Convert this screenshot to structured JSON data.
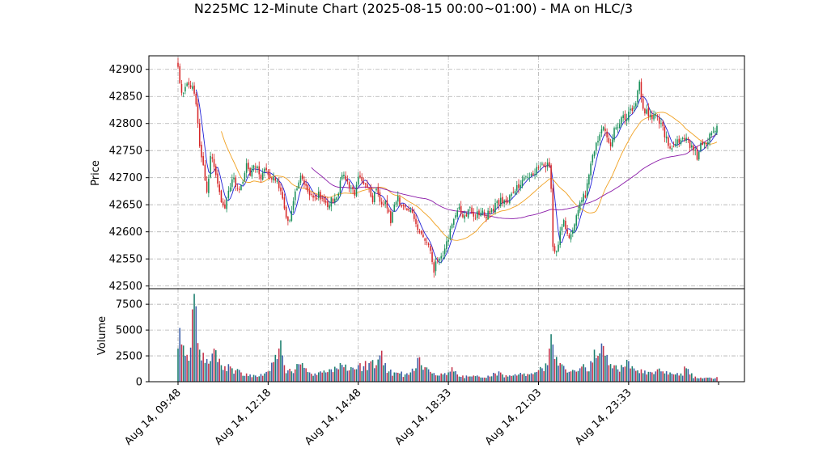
{
  "chart_data": {
    "type": "candlestick",
    "title": "N225MC 12-Minute Chart (2025-08-15 00:00~01:00) - MA on HLC/3",
    "ylabel_price": "Price",
    "ylabel_volume": "Volume",
    "price_ylim": [
      42495,
      42925
    ],
    "volume_ylim": [
      0,
      9000
    ],
    "price_ticks": [
      "42500",
      "42550",
      "42600",
      "42650",
      "42700",
      "42750",
      "42800",
      "42850",
      "42900"
    ],
    "volume_ticks": [
      "0",
      "2500",
      "5000",
      "7500"
    ],
    "x_ticks": [
      {
        "index": 0,
        "label": "Aug 14, 09:48"
      },
      {
        "index": 50,
        "label": "Aug 14, 12:18"
      },
      {
        "index": 100,
        "label": "Aug 14, 14:48"
      },
      {
        "index": 150,
        "label": "Aug 14, 18:33"
      },
      {
        "index": 200,
        "label": "Aug 14, 21:03"
      },
      {
        "index": 250,
        "label": "Aug 14, 23:33"
      }
    ],
    "bar_count": 300,
    "close_anchors": [
      [
        0,
        42905
      ],
      [
        2,
        42850
      ],
      [
        5,
        42880
      ],
      [
        8,
        42870
      ],
      [
        10,
        42840
      ],
      [
        12,
        42760
      ],
      [
        14,
        42720
      ],
      [
        16,
        42670
      ],
      [
        18,
        42740
      ],
      [
        20,
        42720
      ],
      [
        22,
        42690
      ],
      [
        24,
        42660
      ],
      [
        26,
        42650
      ],
      [
        28,
        42670
      ],
      [
        30,
        42700
      ],
      [
        32,
        42690
      ],
      [
        35,
        42680
      ],
      [
        38,
        42720
      ],
      [
        40,
        42705
      ],
      [
        43,
        42725
      ],
      [
        46,
        42700
      ],
      [
        48,
        42720
      ],
      [
        50,
        42710
      ],
      [
        52,
        42700
      ],
      [
        55,
        42690
      ],
      [
        58,
        42660
      ],
      [
        60,
        42630
      ],
      [
        62,
        42620
      ],
      [
        64,
        42660
      ],
      [
        66,
        42680
      ],
      [
        68,
        42700
      ],
      [
        70,
        42690
      ],
      [
        72,
        42670
      ],
      [
        75,
        42660
      ],
      [
        78,
        42670
      ],
      [
        80,
        42660
      ],
      [
        83,
        42650
      ],
      [
        86,
        42660
      ],
      [
        88,
        42665
      ],
      [
        90,
        42690
      ],
      [
        92,
        42710
      ],
      [
        95,
        42680
      ],
      [
        98,
        42670
      ],
      [
        100,
        42700
      ],
      [
        103,
        42690
      ],
      [
        106,
        42675
      ],
      [
        108,
        42660
      ],
      [
        110,
        42680
      ],
      [
        112,
        42660
      ],
      [
        115,
        42650
      ],
      [
        118,
        42620
      ],
      [
        120,
        42650
      ],
      [
        122,
        42660
      ],
      [
        125,
        42650
      ],
      [
        128,
        42640
      ],
      [
        130,
        42630
      ],
      [
        132,
        42620
      ],
      [
        134,
        42600
      ],
      [
        136,
        42590
      ],
      [
        138,
        42580
      ],
      [
        140,
        42560
      ],
      [
        141,
        42545
      ],
      [
        142,
        42530
      ],
      [
        143,
        42540
      ],
      [
        145,
        42550
      ],
      [
        147,
        42560
      ],
      [
        149,
        42580
      ],
      [
        151,
        42600
      ],
      [
        153,
        42630
      ],
      [
        156,
        42640
      ],
      [
        159,
        42625
      ],
      [
        162,
        42640
      ],
      [
        165,
        42630
      ],
      [
        168,
        42640
      ],
      [
        171,
        42630
      ],
      [
        174,
        42640
      ],
      [
        176,
        42650
      ],
      [
        179,
        42660
      ],
      [
        182,
        42650
      ],
      [
        185,
        42670
      ],
      [
        188,
        42680
      ],
      [
        191,
        42690
      ],
      [
        194,
        42700
      ],
      [
        197,
        42710
      ],
      [
        200,
        42720
      ],
      [
        202,
        42730
      ],
      [
        204,
        42725
      ],
      [
        206,
        42720
      ],
      [
        207,
        42680
      ],
      [
        208,
        42570
      ],
      [
        210,
        42560
      ],
      [
        212,
        42600
      ],
      [
        214,
        42620
      ],
      [
        216,
        42590
      ],
      [
        218,
        42600
      ],
      [
        220,
        42620
      ],
      [
        222,
        42640
      ],
      [
        224,
        42660
      ],
      [
        226,
        42670
      ],
      [
        228,
        42700
      ],
      [
        230,
        42740
      ],
      [
        232,
        42760
      ],
      [
        234,
        42780
      ],
      [
        236,
        42790
      ],
      [
        238,
        42780
      ],
      [
        240,
        42760
      ],
      [
        242,
        42790
      ],
      [
        244,
        42800
      ],
      [
        246,
        42810
      ],
      [
        248,
        42810
      ],
      [
        250,
        42820
      ],
      [
        252,
        42830
      ],
      [
        254,
        42840
      ],
      [
        256,
        42880
      ],
      [
        258,
        42830
      ],
      [
        260,
        42820
      ],
      [
        262,
        42810
      ],
      [
        264,
        42820
      ],
      [
        266,
        42810
      ],
      [
        268,
        42800
      ],
      [
        270,
        42780
      ],
      [
        272,
        42760
      ],
      [
        274,
        42750
      ],
      [
        276,
        42760
      ],
      [
        278,
        42770
      ],
      [
        280,
        42780
      ],
      [
        282,
        42770
      ],
      [
        284,
        42760
      ],
      [
        286,
        42750
      ],
      [
        288,
        42740
      ],
      [
        290,
        42760
      ],
      [
        292,
        42760
      ],
      [
        294,
        42770
      ],
      [
        296,
        42780
      ],
      [
        298,
        42790
      ],
      [
        299,
        42800
      ]
    ],
    "volume_anchors": [
      [
        0,
        3200
      ],
      [
        1,
        5200
      ],
      [
        3,
        3500
      ],
      [
        5,
        2600
      ],
      [
        7,
        3300
      ],
      [
        8,
        7000
      ],
      [
        9,
        8500
      ],
      [
        10,
        7300
      ],
      [
        12,
        3100
      ],
      [
        14,
        2800
      ],
      [
        16,
        2200
      ],
      [
        18,
        2000
      ],
      [
        20,
        3200
      ],
      [
        22,
        1900
      ],
      [
        24,
        1600
      ],
      [
        26,
        1500
      ],
      [
        28,
        1700
      ],
      [
        30,
        1300
      ],
      [
        32,
        1100
      ],
      [
        35,
        900
      ],
      [
        38,
        800
      ],
      [
        40,
        700
      ],
      [
        43,
        600
      ],
      [
        46,
        750
      ],
      [
        48,
        800
      ],
      [
        50,
        1000
      ],
      [
        53,
        1900
      ],
      [
        55,
        2200
      ],
      [
        57,
        4000
      ],
      [
        59,
        1600
      ],
      [
        61,
        1100
      ],
      [
        63,
        1000
      ],
      [
        65,
        1200
      ],
      [
        67,
        1700
      ],
      [
        69,
        1800
      ],
      [
        71,
        1300
      ],
      [
        73,
        900
      ],
      [
        76,
        800
      ],
      [
        79,
        1000
      ],
      [
        82,
        900
      ],
      [
        85,
        1200
      ],
      [
        88,
        1300
      ],
      [
        90,
        1800
      ],
      [
        92,
        1400
      ],
      [
        95,
        1100
      ],
      [
        98,
        1200
      ],
      [
        100,
        1600
      ],
      [
        103,
        1500
      ],
      [
        106,
        1800
      ],
      [
        108,
        2100
      ],
      [
        110,
        1600
      ],
      [
        113,
        3000
      ],
      [
        115,
        1800
      ],
      [
        117,
        1000
      ],
      [
        120,
        900
      ],
      [
        123,
        800
      ],
      [
        126,
        700
      ],
      [
        129,
        900
      ],
      [
        132,
        1300
      ],
      [
        133,
        2300
      ],
      [
        135,
        1600
      ],
      [
        137,
        1400
      ],
      [
        139,
        1200
      ],
      [
        141,
        800
      ],
      [
        144,
        600
      ],
      [
        147,
        700
      ],
      [
        150,
        900
      ],
      [
        152,
        1400
      ],
      [
        155,
        700
      ],
      [
        158,
        600
      ],
      [
        161,
        500
      ],
      [
        164,
        600
      ],
      [
        167,
        500
      ],
      [
        170,
        400
      ],
      [
        173,
        500
      ],
      [
        176,
        800
      ],
      [
        178,
        1000
      ],
      [
        180,
        700
      ],
      [
        183,
        500
      ],
      [
        186,
        600
      ],
      [
        189,
        700
      ],
      [
        192,
        800
      ],
      [
        195,
        700
      ],
      [
        198,
        900
      ],
      [
        200,
        1100
      ],
      [
        202,
        1300
      ],
      [
        205,
        1600
      ],
      [
        207,
        4600
      ],
      [
        208,
        3600
      ],
      [
        210,
        2400
      ],
      [
        212,
        1800
      ],
      [
        215,
        1200
      ],
      [
        218,
        1000
      ],
      [
        220,
        1100
      ],
      [
        223,
        1300
      ],
      [
        225,
        1700
      ],
      [
        227,
        1000
      ],
      [
        229,
        2000
      ],
      [
        231,
        3100
      ],
      [
        233,
        2500
      ],
      [
        235,
        3700
      ],
      [
        237,
        2500
      ],
      [
        239,
        1600
      ],
      [
        241,
        1300
      ],
      [
        244,
        1200
      ],
      [
        247,
        1400
      ],
      [
        250,
        2000
      ],
      [
        252,
        1500
      ],
      [
        255,
        1100
      ],
      [
        257,
        1200
      ],
      [
        260,
        700
      ],
      [
        263,
        900
      ],
      [
        266,
        1200
      ],
      [
        268,
        1000
      ],
      [
        270,
        800
      ],
      [
        273,
        900
      ],
      [
        276,
        700
      ],
      [
        279,
        800
      ],
      [
        282,
        1300
      ],
      [
        284,
        700
      ],
      [
        287,
        500
      ],
      [
        290,
        400
      ],
      [
        293,
        400
      ],
      [
        296,
        350
      ],
      [
        299,
        450
      ]
    ],
    "ma_periods": [
      5,
      25,
      75
    ],
    "colors": {
      "up": "#1a8f5a",
      "down": "#d62728",
      "vol_a": "#1b7e6e",
      "vol_b": "#3b5ea8",
      "vol_c": "#c4344c",
      "ma_short": "#1f1fd6",
      "ma_mid": "#f0a020",
      "ma_long": "#8a1aa8"
    }
  }
}
